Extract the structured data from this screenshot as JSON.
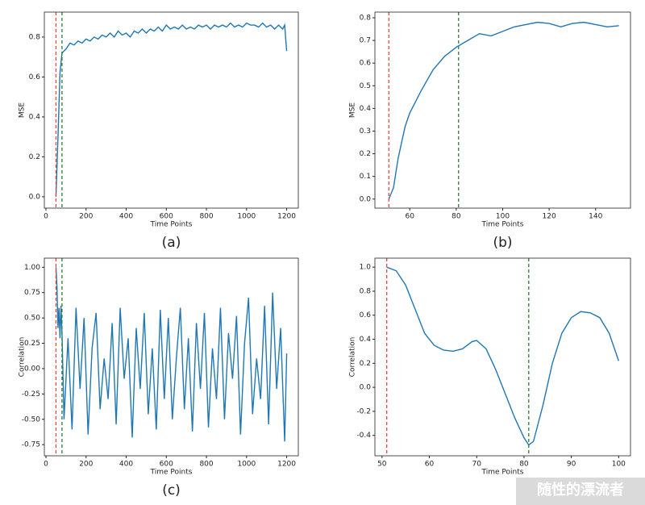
{
  "chart_data": [
    {
      "type": "line",
      "caption": "(a)",
      "xlabel": "Time Points",
      "ylabel": "MSE",
      "xlim": [
        -8,
        1258
      ],
      "ylim": [
        -0.057,
        0.925
      ],
      "xticks": [
        0,
        200,
        400,
        600,
        800,
        1000,
        1200
      ],
      "yticks": [
        {
          "value": 0,
          "label": "0.0"
        },
        0.2,
        0.4,
        0.6,
        0.8
      ],
      "vlines": [
        {
          "x": 50,
          "color": "#e8453c"
        },
        {
          "x": 80,
          "color": "#2e7d32"
        }
      ],
      "series": [
        {
          "color": "#1f77b4",
          "x": [
            50,
            60,
            70,
            80,
            100,
            120,
            140,
            160,
            180,
            200,
            220,
            240,
            260,
            280,
            300,
            320,
            340,
            360,
            380,
            400,
            420,
            440,
            460,
            480,
            500,
            520,
            540,
            560,
            580,
            600,
            620,
            640,
            660,
            680,
            700,
            720,
            740,
            760,
            780,
            800,
            820,
            840,
            860,
            880,
            900,
            920,
            940,
            960,
            980,
            1000,
            1020,
            1040,
            1060,
            1080,
            1100,
            1120,
            1140,
            1160,
            1180,
            1190,
            1200
          ],
          "values": [
            0,
            0.3,
            0.62,
            0.72,
            0.74,
            0.77,
            0.76,
            0.78,
            0.77,
            0.79,
            0.78,
            0.8,
            0.79,
            0.81,
            0.8,
            0.82,
            0.8,
            0.83,
            0.81,
            0.82,
            0.8,
            0.83,
            0.82,
            0.84,
            0.82,
            0.84,
            0.83,
            0.85,
            0.83,
            0.86,
            0.84,
            0.85,
            0.84,
            0.86,
            0.84,
            0.85,
            0.84,
            0.86,
            0.85,
            0.86,
            0.84,
            0.86,
            0.85,
            0.86,
            0.85,
            0.87,
            0.85,
            0.86,
            0.85,
            0.87,
            0.86,
            0.86,
            0.85,
            0.87,
            0.85,
            0.86,
            0.84,
            0.86,
            0.84,
            0.86,
            0.73
          ]
        }
      ]
    },
    {
      "type": "line",
      "caption": "(b)",
      "xlabel": "Time Points",
      "ylabel": "MSE",
      "xlim": [
        45,
        155
      ],
      "ylim": [
        -0.04,
        0.825
      ],
      "xticks": [
        60,
        80,
        100,
        120,
        140
      ],
      "yticks": [
        {
          "value": 0,
          "label": "0.0"
        },
        0.1,
        0.2,
        0.3,
        0.4,
        0.5,
        0.6,
        0.7,
        0.8
      ],
      "vlines": [
        {
          "x": 51,
          "color": "#e8453c"
        },
        {
          "x": 81,
          "color": "#2e7d32"
        }
      ],
      "series": [
        {
          "color": "#1f77b4",
          "x": [
            51,
            53,
            55,
            58,
            60,
            65,
            70,
            75,
            80,
            85,
            90,
            95,
            100,
            105,
            110,
            115,
            120,
            125,
            130,
            135,
            140,
            145,
            150
          ],
          "values": [
            0,
            0.05,
            0.18,
            0.32,
            0.38,
            0.48,
            0.57,
            0.63,
            0.67,
            0.7,
            0.73,
            0.72,
            0.74,
            0.76,
            0.77,
            0.78,
            0.775,
            0.76,
            0.775,
            0.78,
            0.77,
            0.76,
            0.765
          ]
        }
      ]
    },
    {
      "type": "line",
      "caption": "(c)",
      "xlabel": "Time Points",
      "ylabel": "Correlation",
      "xlim": [
        -8,
        1258
      ],
      "ylim": [
        -0.86,
        1.09
      ],
      "xticks": [
        0,
        200,
        400,
        600,
        800,
        1000,
        1200
      ],
      "yticks": [
        -0.75,
        {
          "value": -0.5,
          "label": "-0.50"
        },
        -0.25,
        {
          "value": 0,
          "label": "0.00"
        },
        0.25,
        {
          "value": 0.5,
          "label": "0.50"
        },
        0.75,
        {
          "value": 1,
          "label": "1.00"
        }
      ],
      "vlines": [
        {
          "x": 50,
          "color": "#e8453c"
        },
        {
          "x": 80,
          "color": "#2e7d32"
        }
      ],
      "series": [
        {
          "color": "#1f77b4",
          "x": [
            50,
            55,
            60,
            65,
            70,
            75,
            80,
            90,
            110,
            130,
            150,
            170,
            190,
            210,
            230,
            250,
            270,
            290,
            310,
            330,
            350,
            370,
            390,
            410,
            430,
            450,
            470,
            490,
            510,
            530,
            550,
            570,
            590,
            610,
            630,
            650,
            670,
            690,
            710,
            730,
            750,
            770,
            790,
            810,
            830,
            850,
            870,
            890,
            910,
            930,
            950,
            970,
            990,
            1010,
            1030,
            1050,
            1070,
            1090,
            1110,
            1130,
            1150,
            1170,
            1190,
            1200
          ],
          "values": [
            1.0,
            0.8,
            0.4,
            0.6,
            0.3,
            0.62,
            0.35,
            -0.5,
            0.3,
            -0.6,
            0.6,
            -0.2,
            0.5,
            -0.65,
            0.2,
            0.55,
            -0.4,
            0.1,
            -0.3,
            0.45,
            -0.55,
            0.6,
            -0.1,
            0.3,
            -0.68,
            0.4,
            -0.2,
            0.55,
            -0.45,
            0.2,
            -0.6,
            0.58,
            -0.3,
            0.5,
            -0.5,
            0.1,
            0.6,
            -0.4,
            0.3,
            -0.62,
            0.45,
            -0.2,
            0.55,
            -0.58,
            0.2,
            -0.3,
            0.6,
            -0.5,
            0.35,
            -0.1,
            0.52,
            -0.65,
            0.25,
            0.7,
            -0.45,
            0.1,
            -0.3,
            0.62,
            -0.55,
            0.75,
            -0.2,
            0.4,
            -0.72,
            0.15
          ]
        }
      ]
    },
    {
      "type": "line",
      "xlabel": "Time Points",
      "ylabel": "Correlation",
      "xlim": [
        48.5,
        102.5
      ],
      "ylim": [
        -0.57,
        1.075
      ],
      "xticks": [
        50,
        60,
        70,
        80,
        90,
        100
      ],
      "yticks": [
        -0.4,
        -0.2,
        {
          "value": 0,
          "label": "0.0"
        },
        0.2,
        0.4,
        0.6,
        0.8,
        {
          "value": 1,
          "label": "1.0"
        }
      ],
      "vlines": [
        {
          "x": 51,
          "color": "#e8453c"
        },
        {
          "x": 81,
          "color": "#2e7d32"
        }
      ],
      "series": [
        {
          "color": "#1f77b4",
          "x": [
            51,
            53,
            55,
            57,
            59,
            61,
            63,
            65,
            67,
            69,
            70,
            72,
            74,
            76,
            78,
            80,
            81,
            82,
            84,
            86,
            88,
            90,
            92,
            94,
            96,
            98,
            100
          ],
          "values": [
            1.0,
            0.97,
            0.85,
            0.65,
            0.45,
            0.35,
            0.31,
            0.3,
            0.32,
            0.38,
            0.39,
            0.32,
            0.15,
            -0.05,
            -0.25,
            -0.42,
            -0.48,
            -0.45,
            -0.15,
            0.2,
            0.45,
            0.58,
            0.63,
            0.62,
            0.58,
            0.45,
            0.22
          ]
        }
      ]
    }
  ],
  "watermark": "随性的漂流者"
}
